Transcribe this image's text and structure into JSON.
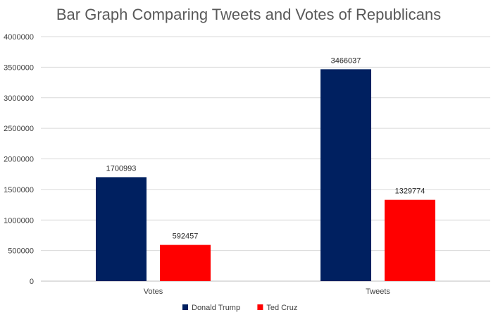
{
  "chart_data": {
    "type": "bar",
    "title": "Bar Graph Comparing Tweets and Votes of Republicans",
    "categories": [
      "Votes",
      "Tweets"
    ],
    "series": [
      {
        "name": "Donald Trump",
        "values": [
          1700993,
          3466037
        ],
        "color": "#002060"
      },
      {
        "name": "Ted Cruz",
        "values": [
          592457,
          1329774
        ],
        "color": "#ff0000"
      }
    ],
    "ylim": [
      0,
      4000000
    ],
    "yticks": [
      "0",
      "500000",
      "1000000",
      "1500000",
      "2000000",
      "2500000",
      "3000000",
      "3500000",
      "4000000"
    ],
    "grid": true,
    "legend_position": "bottom"
  }
}
